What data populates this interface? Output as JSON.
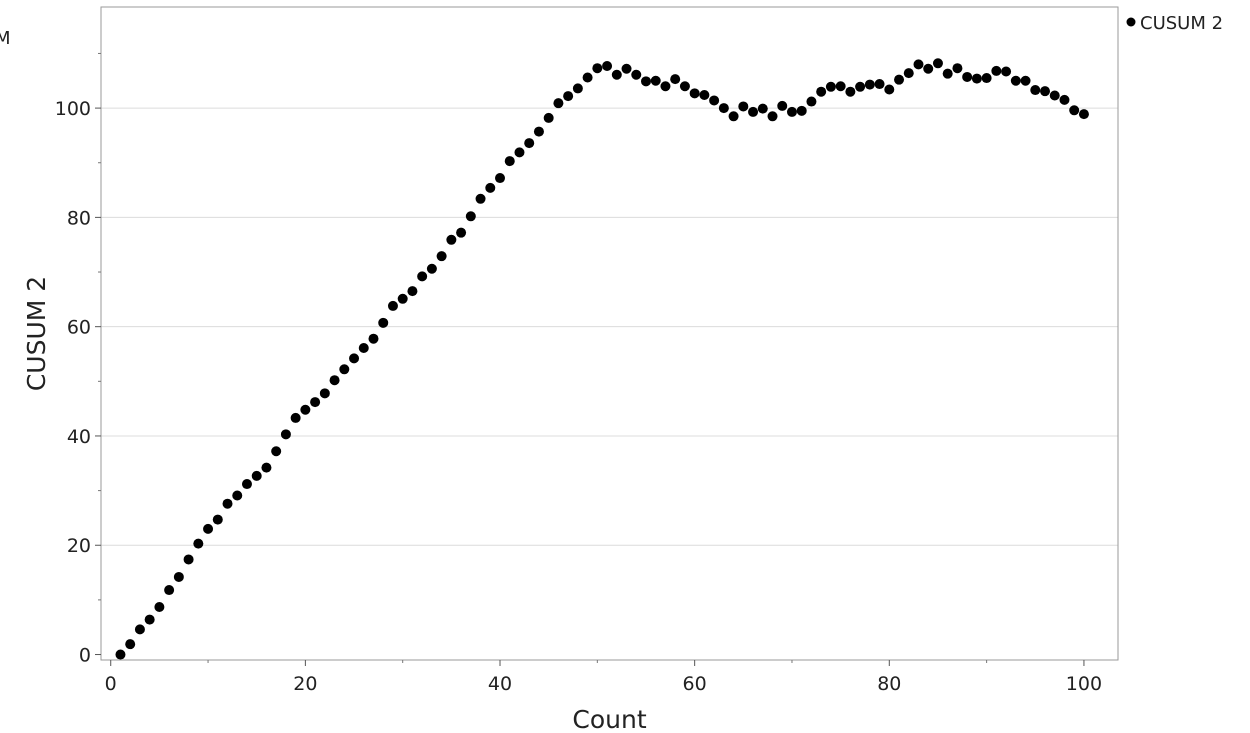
{
  "chart_data": {
    "type": "scatter",
    "xlabel": "Count",
    "ylabel": "CUSUM 2",
    "xlim": [
      -1,
      103.5
    ],
    "ylim": [
      -1,
      118.5
    ],
    "x_ticks": [
      0,
      20,
      40,
      60,
      80,
      100
    ],
    "y_ticks": [
      0,
      20,
      40,
      60,
      80,
      100
    ],
    "grid": "horizontal",
    "legend_position": "top-right",
    "left_edge_fragment": "M",
    "series": [
      {
        "name": "CUSUM 2",
        "color": "#000000",
        "marker": "circle",
        "x": [
          1,
          2,
          3,
          4,
          5,
          6,
          7,
          8,
          9,
          10,
          11,
          12,
          13,
          14,
          15,
          16,
          17,
          18,
          19,
          20,
          21,
          22,
          23,
          24,
          25,
          26,
          27,
          28,
          29,
          30,
          31,
          32,
          33,
          34,
          35,
          36,
          37,
          38,
          39,
          40,
          41,
          42,
          43,
          44,
          45,
          46,
          47,
          48,
          49,
          50,
          51,
          52,
          53,
          54,
          55,
          56,
          57,
          58,
          59,
          60,
          61,
          62,
          63,
          64,
          65,
          66,
          67,
          68,
          69,
          70,
          71,
          72,
          73,
          74,
          75,
          76,
          77,
          78,
          79,
          80,
          81,
          82,
          83,
          84,
          85,
          86,
          87,
          88,
          89,
          90,
          91,
          92,
          93,
          94,
          95,
          96,
          97,
          98,
          99,
          100
        ],
        "y": [
          0.0,
          1.9,
          4.6,
          6.4,
          8.7,
          11.8,
          14.2,
          17.4,
          20.3,
          23.0,
          24.7,
          27.6,
          29.1,
          31.2,
          32.7,
          34.2,
          37.2,
          40.3,
          43.3,
          44.8,
          46.2,
          47.8,
          50.2,
          52.2,
          54.2,
          56.1,
          57.8,
          60.7,
          63.8,
          65.1,
          66.5,
          69.2,
          70.6,
          72.9,
          75.9,
          77.2,
          80.2,
          83.4,
          85.4,
          87.2,
          90.3,
          91.9,
          93.6,
          95.7,
          98.2,
          100.9,
          102.2,
          103.6,
          105.6,
          107.3,
          107.7,
          106.1,
          107.2,
          106.1,
          104.9,
          105.0,
          104.0,
          105.3,
          104.0,
          102.7,
          102.4,
          101.4,
          100.0,
          98.5,
          100.3,
          99.3,
          99.9,
          98.5,
          100.4,
          99.3,
          99.5,
          101.2,
          103.0,
          103.9,
          104.0,
          103.0,
          103.9,
          104.3,
          104.4,
          103.4,
          105.2,
          106.4,
          108.0,
          107.2,
          108.2,
          106.3,
          107.3,
          105.7,
          105.4,
          105.5,
          106.8,
          106.7,
          105.0,
          105.0,
          103.3,
          103.1,
          102.3,
          101.5,
          99.6,
          98.9
        ]
      }
    ]
  }
}
